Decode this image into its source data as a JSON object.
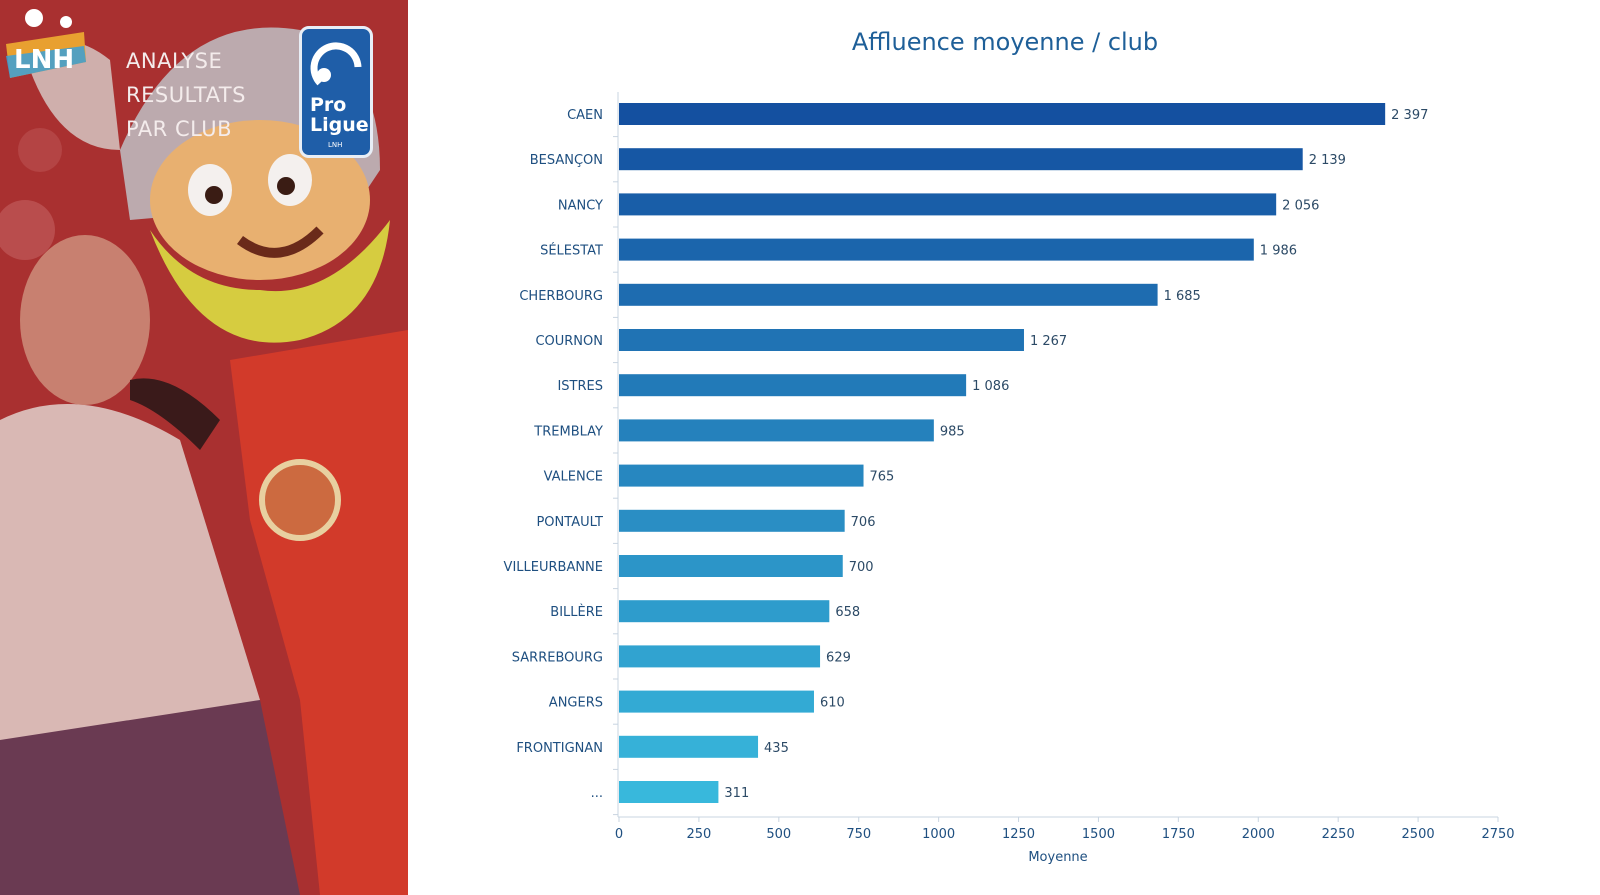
{
  "panel": {
    "title_lines": [
      "ANALYSE",
      "RESULTATS",
      "PAR CLUB"
    ],
    "logo_text": "LNH",
    "badge_line1": "Pro",
    "badge_line2": "Ligue",
    "badge_small": "LNH",
    "tint_color": "#b23434"
  },
  "chart_data": {
    "type": "bar",
    "orientation": "horizontal",
    "title": "Affluence moyenne / club",
    "xlabel": "Moyenne",
    "ylabel": "",
    "categories": [
      "CAEN",
      "BESANÇON",
      "NANCY",
      "SÉLESTAT",
      "CHERBOURG",
      "COURNON",
      "ISTRES",
      "TREMBLAY",
      "VALENCE",
      "PONTAULT",
      "VILLEURBANNE",
      "BILLÈRE",
      "SARREBOURG",
      "ANGERS",
      "FRONTIGNAN",
      "..."
    ],
    "values": [
      2397,
      2139,
      2056,
      1986,
      1685,
      1267,
      1086,
      985,
      765,
      706,
      700,
      658,
      629,
      610,
      435,
      311
    ],
    "value_labels": [
      "2 397",
      "2 139",
      "2 056",
      "1 986",
      "1 685",
      "1 267",
      "1 086",
      "985",
      "765",
      "706",
      "700",
      "658",
      "629",
      "610",
      "435",
      "311"
    ],
    "xlim": [
      0,
      2750
    ],
    "xticks": [
      0,
      250,
      500,
      750,
      1000,
      1250,
      1500,
      1750,
      2000,
      2250,
      2500,
      2750
    ],
    "grid": false,
    "legend": "none",
    "colors": {
      "top": "#1450a0",
      "bottom": "#38b8dc"
    }
  }
}
